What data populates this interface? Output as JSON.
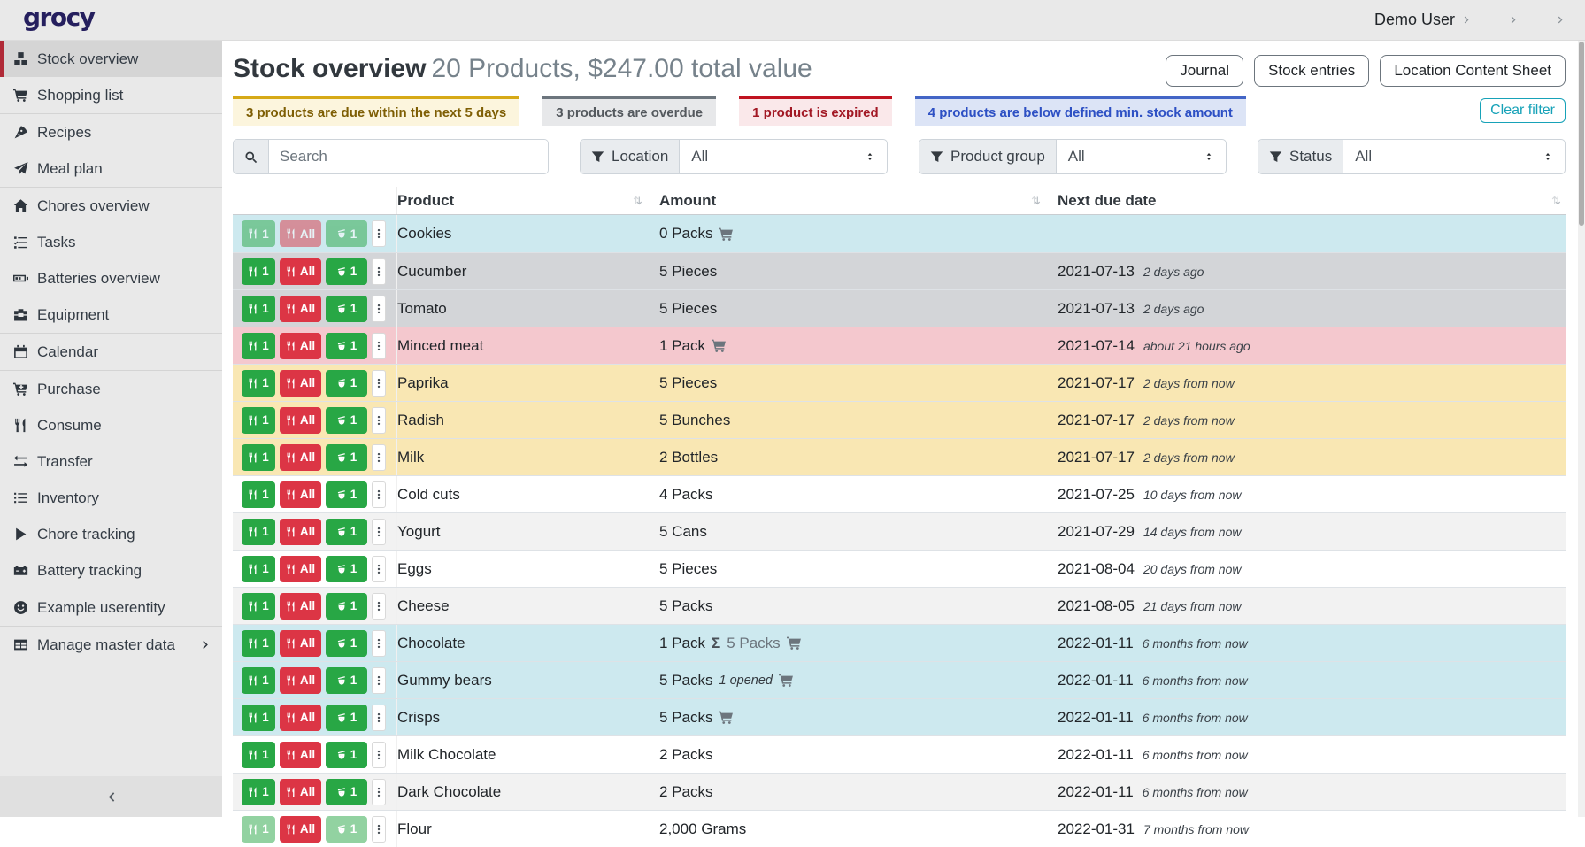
{
  "app": {
    "logo_text": "grocy"
  },
  "topbar": {
    "user": {
      "label": "Demo User",
      "icon": "person"
    },
    "menus": [
      {
        "icon": "sliders"
      },
      {
        "icon": "wrench"
      }
    ]
  },
  "sidebar": {
    "items": [
      {
        "label": "Stock overview",
        "icon": "boxes",
        "active": true
      },
      {
        "label": "Shopping list",
        "icon": "cart",
        "divider_after": true
      },
      {
        "label": "Recipes",
        "icon": "pizza"
      },
      {
        "label": "Meal plan",
        "icon": "paper-plane",
        "divider_after": true
      },
      {
        "label": "Chores overview",
        "icon": "home"
      },
      {
        "label": "Tasks",
        "icon": "tasks"
      },
      {
        "label": "Batteries overview",
        "icon": "battery"
      },
      {
        "label": "Equipment",
        "icon": "toolbox",
        "divider_after": true
      },
      {
        "label": "Calendar",
        "icon": "calendar",
        "divider_after": true
      },
      {
        "label": "Purchase",
        "icon": "cart-plus"
      },
      {
        "label": "Consume",
        "icon": "utensils"
      },
      {
        "label": "Transfer",
        "icon": "exchange"
      },
      {
        "label": "Inventory",
        "icon": "list"
      },
      {
        "label": "Chore tracking",
        "icon": "play"
      },
      {
        "label": "Battery tracking",
        "icon": "car-battery",
        "divider_after": true
      },
      {
        "label": "Example userentity",
        "icon": "smiley",
        "divider_after": true
      },
      {
        "label": "Manage master data",
        "icon": "table",
        "chevron": true
      }
    ],
    "collapse_icon": "chevron-left"
  },
  "header": {
    "title": "Stock overview",
    "subtitle": "20 Products, $247.00 total value",
    "buttons": [
      "Journal",
      "Stock entries",
      "Location Content Sheet"
    ]
  },
  "banners": [
    {
      "type": "warning",
      "text": "3 products are due within the next 5 days"
    },
    {
      "type": "secondary",
      "text": "3 products are overdue"
    },
    {
      "type": "danger",
      "text": "1 product is expired"
    },
    {
      "type": "info",
      "text": "4 products are below defined min. stock amount"
    }
  ],
  "clear_filter_label": "Clear filter",
  "filters": {
    "search_placeholder": "Search",
    "selects": [
      {
        "label": "Location",
        "value": "All"
      },
      {
        "label": "Product group",
        "value": "All"
      },
      {
        "label": "Status",
        "value": "All"
      }
    ]
  },
  "table": {
    "columns": [
      "Product",
      "Amount",
      "Next due date"
    ],
    "row_buttons": {
      "consume_one": "1",
      "consume_all": "All",
      "open_one": "1"
    },
    "rows": [
      {
        "name": "Cookies",
        "amount": "0 Packs",
        "cart": true,
        "date": "",
        "note": "",
        "color": "info",
        "faded": "all"
      },
      {
        "name": "Cucumber",
        "amount": "5 Pieces",
        "cart": false,
        "date": "2021-07-13",
        "note": "2 days ago",
        "color": "secondary"
      },
      {
        "name": "Tomato",
        "amount": "5 Pieces",
        "cart": false,
        "date": "2021-07-13",
        "note": "2 days ago",
        "color": "secondary"
      },
      {
        "name": "Minced meat",
        "amount": "1 Pack",
        "cart": true,
        "date": "2021-07-14",
        "note": "about 21 hours ago",
        "color": "danger"
      },
      {
        "name": "Paprika",
        "amount": "5 Pieces",
        "cart": false,
        "date": "2021-07-17",
        "note": "2 days from now",
        "color": "warning"
      },
      {
        "name": "Radish",
        "amount": "5 Bunches",
        "cart": false,
        "date": "2021-07-17",
        "note": "2 days from now",
        "color": "warning"
      },
      {
        "name": "Milk",
        "amount": "2 Bottles",
        "cart": false,
        "date": "2021-07-17",
        "note": "2 days from now",
        "color": "warning"
      },
      {
        "name": "Cold cuts",
        "amount": "4 Packs",
        "cart": false,
        "date": "2021-07-25",
        "note": "10 days from now",
        "color": "none"
      },
      {
        "name": "Yogurt",
        "amount": "5 Cans",
        "cart": false,
        "date": "2021-07-29",
        "note": "14 days from now",
        "color": "stripe"
      },
      {
        "name": "Eggs",
        "amount": "5 Pieces",
        "cart": false,
        "date": "2021-08-04",
        "note": "20 days from now",
        "color": "none"
      },
      {
        "name": "Cheese",
        "amount": "5 Packs",
        "cart": false,
        "date": "2021-08-05",
        "note": "21 days from now",
        "color": "stripe"
      },
      {
        "name": "Chocolate",
        "amount": "1 Pack",
        "sum": "5 Packs",
        "cart": true,
        "date": "2022-01-11",
        "note": "6 months from now",
        "color": "info"
      },
      {
        "name": "Gummy bears",
        "amount": "5 Packs",
        "opened": "1 opened",
        "cart": true,
        "date": "2022-01-11",
        "note": "6 months from now",
        "color": "info"
      },
      {
        "name": "Crisps",
        "amount": "5 Packs",
        "cart": true,
        "date": "2022-01-11",
        "note": "6 months from now",
        "color": "info"
      },
      {
        "name": "Milk Chocolate",
        "amount": "2 Packs",
        "cart": false,
        "date": "2022-01-11",
        "note": "6 months from now",
        "color": "none"
      },
      {
        "name": "Dark Chocolate",
        "amount": "2 Packs",
        "cart": false,
        "date": "2022-01-11",
        "note": "6 months from now",
        "color": "stripe"
      },
      {
        "name": "Flour",
        "amount": "2,000 Grams",
        "cart": false,
        "date": "2022-01-31",
        "note": "7 months from now",
        "color": "none",
        "faded": "greens"
      }
    ]
  },
  "icons": {
    "sigma_glyph": "Σ",
    "names": [
      "search-icon",
      "funnel-icon",
      "eye-icon",
      "sort-icon",
      "cart-icon",
      "utensils-icon",
      "box-open-icon",
      "ellipsis-v-icon",
      "person-icon",
      "sliders-icon",
      "wrench-icon",
      "chevron-right-icon",
      "chevron-left-icon",
      "updown-icon"
    ]
  },
  "colors": {
    "logo": "#251f5e",
    "sidebar_active_border": "#b02a37",
    "button_green": "#28a745",
    "button_red": "#dc3545",
    "row_info": "#cde9ef",
    "row_overdue": "#d3d5d8",
    "row_expired": "#f4c8ce",
    "row_due_soon": "#f9e7b3",
    "row_stripe": "#f2f2f2",
    "clear_filter": "#17a2b8",
    "banner_warning_border": "#d6a916",
    "banner_secondary_border": "#6c757d",
    "banner_danger_border": "#c0131f",
    "banner_info_border": "#4365c6"
  }
}
